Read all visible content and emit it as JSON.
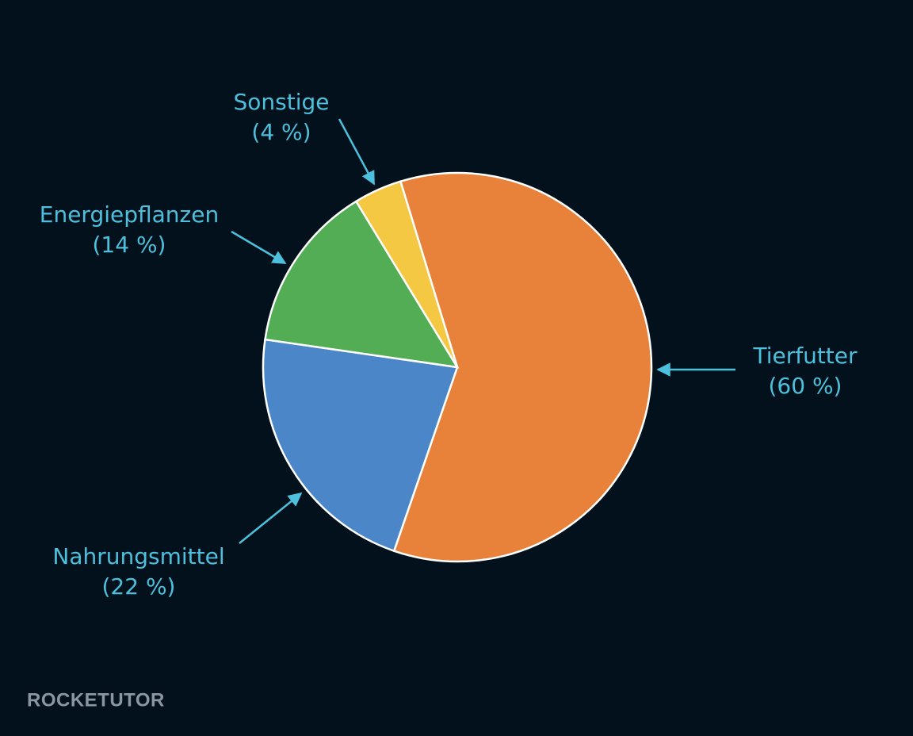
{
  "chart_data": {
    "type": "pie",
    "categories": [
      "Tierfutter",
      "Nahrungsmittel",
      "Energiepflanzen",
      "Sonstige"
    ],
    "values": [
      60,
      22,
      14,
      4
    ],
    "value_labels": [
      "(60 %)",
      "(22 %)",
      "(14 %)",
      "(4 %)"
    ],
    "colors": [
      "#e8823a",
      "#4a86c8",
      "#52ad55",
      "#f4c842"
    ]
  },
  "watermark": "ROCKETUTOR"
}
